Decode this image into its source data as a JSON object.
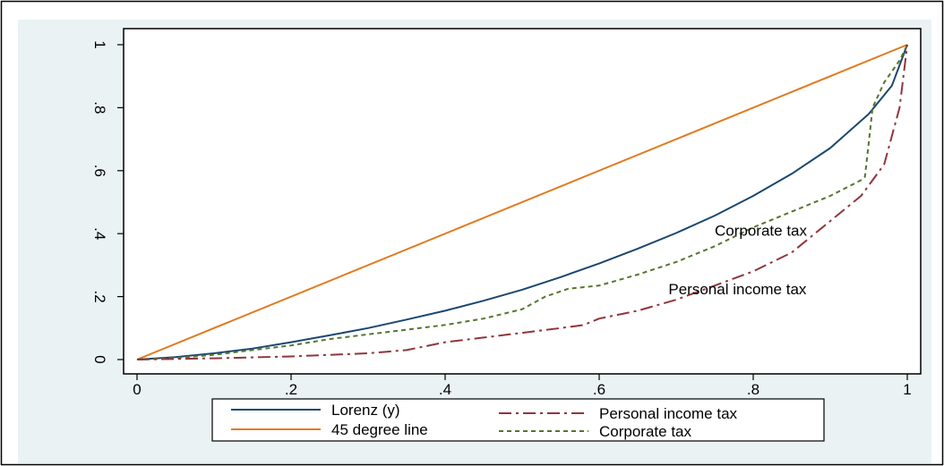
{
  "chart_data": {
    "type": "line",
    "title": "",
    "xlabel": "",
    "ylabel": "",
    "xlim": [
      0,
      1
    ],
    "ylim": [
      0,
      1
    ],
    "xticks": [
      0,
      0.2,
      0.4,
      0.6,
      0.8,
      1
    ],
    "xtick_labels": [
      "0",
      ".2",
      ".4",
      ".6",
      ".8",
      "1"
    ],
    "yticks": [
      0,
      0.2,
      0.4,
      0.6,
      0.8,
      1
    ],
    "ytick_labels": [
      "0",
      ".2",
      ".4",
      ".6",
      ".8",
      "1"
    ],
    "grid": false,
    "legend_position": "bottom",
    "series": [
      {
        "name": "Lorenz (y)",
        "color": "#1a476f",
        "style": "solid",
        "x": [
          0,
          0.05,
          0.1,
          0.15,
          0.2,
          0.25,
          0.3,
          0.35,
          0.4,
          0.45,
          0.5,
          0.55,
          0.6,
          0.65,
          0.7,
          0.75,
          0.8,
          0.85,
          0.9,
          0.95,
          0.98,
          1
        ],
        "y": [
          0,
          0.008,
          0.02,
          0.035,
          0.055,
          0.077,
          0.1,
          0.127,
          0.155,
          0.187,
          0.222,
          0.262,
          0.305,
          0.352,
          0.402,
          0.457,
          0.52,
          0.59,
          0.672,
          0.78,
          0.87,
          1
        ]
      },
      {
        "name": "45 degree line",
        "color": "#e07b20",
        "style": "solid",
        "x": [
          0,
          1
        ],
        "y": [
          0,
          1
        ]
      },
      {
        "name": "Personal income tax",
        "color": "#90353b",
        "style": "dashdot",
        "x": [
          0,
          0.1,
          0.2,
          0.3,
          0.35,
          0.4,
          0.45,
          0.5,
          0.55,
          0.58,
          0.6,
          0.65,
          0.7,
          0.75,
          0.8,
          0.85,
          0.9,
          0.94,
          0.97,
          0.99,
          1
        ],
        "y": [
          0,
          0.004,
          0.01,
          0.02,
          0.03,
          0.055,
          0.07,
          0.085,
          0.1,
          0.11,
          0.13,
          0.155,
          0.19,
          0.235,
          0.28,
          0.34,
          0.44,
          0.52,
          0.62,
          0.8,
          1
        ]
      },
      {
        "name": "Corporate tax",
        "color": "#55752f",
        "style": "dash",
        "x": [
          0,
          0.05,
          0.1,
          0.15,
          0.2,
          0.25,
          0.3,
          0.35,
          0.4,
          0.45,
          0.5,
          0.53,
          0.56,
          0.6,
          0.65,
          0.7,
          0.75,
          0.8,
          0.85,
          0.9,
          0.94,
          0.945,
          0.955,
          0.97,
          0.99,
          1
        ],
        "y": [
          0,
          0.005,
          0.015,
          0.03,
          0.045,
          0.065,
          0.08,
          0.095,
          0.11,
          0.13,
          0.16,
          0.2,
          0.225,
          0.235,
          0.27,
          0.31,
          0.36,
          0.42,
          0.47,
          0.52,
          0.57,
          0.58,
          0.8,
          0.88,
          0.95,
          1
        ]
      }
    ],
    "annotations": [
      {
        "text": "Corporate tax",
        "x": 0.75,
        "y": 0.41
      },
      {
        "text": "Personal income tax",
        "x": 0.69,
        "y": 0.225
      }
    ]
  }
}
